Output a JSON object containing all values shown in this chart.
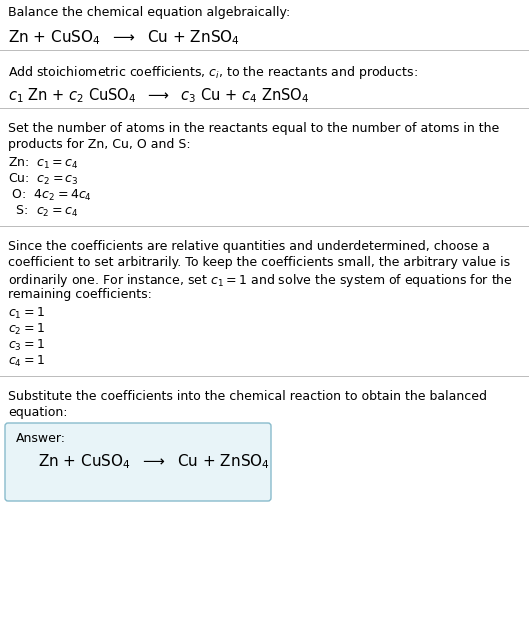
{
  "title": "Balance the chemical equation algebraically:",
  "eq1": "Zn + CuSO$_4$  $\\longrightarrow$  Cu + ZnSO$_4$",
  "section2_title": "Add stoichiometric coefficients, $c_i$, to the reactants and products:",
  "eq2": "$c_1$ Zn + $c_2$ CuSO$_4$  $\\longrightarrow$  $c_3$ Cu + $c_4$ ZnSO$_4$",
  "section3_title_l1": "Set the number of atoms in the reactants equal to the number of atoms in the",
  "section3_title_l2": "products for Zn, Cu, O and S:",
  "atoms": [
    "Zn:  $c_1 = c_4$",
    "Cu:  $c_2 = c_3$",
    " O:  $4 c_2 = 4 c_4$",
    "  S:  $c_2 = c_4$"
  ],
  "section4_title_l1": "Since the coefficients are relative quantities and underdetermined, choose a",
  "section4_title_l2": "coefficient to set arbitrarily. To keep the coefficients small, the arbitrary value is",
  "section4_title_l3": "ordinarily one. For instance, set $c_1 = 1$ and solve the system of equations for the",
  "section4_title_l4": "remaining coefficients:",
  "coeffs": [
    "$c_1 = 1$",
    "$c_2 = 1$",
    "$c_3 = 1$",
    "$c_4 = 1$"
  ],
  "section5_title_l1": "Substitute the coefficients into the chemical reaction to obtain the balanced",
  "section5_title_l2": "equation:",
  "answer_label": "Answer:",
  "answer_eq": "Zn + CuSO$_4$  $\\longrightarrow$  Cu + ZnSO$_4$",
  "bg_color": "#ffffff",
  "text_color": "#000000",
  "line_color": "#bbbbbb",
  "answer_box_color": "#e8f4f8",
  "answer_box_border": "#88bbcc",
  "fs_body": 9.0,
  "fs_eq": 11.0,
  "fs_eq2": 10.5
}
